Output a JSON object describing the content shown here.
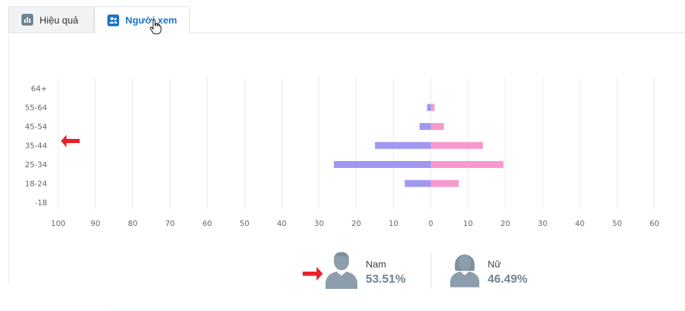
{
  "tabs": [
    {
      "label": "Hiệu quả",
      "icon": "bar-chart-icon",
      "active": false
    },
    {
      "label": "Người xem",
      "icon": "users-icon",
      "active": true
    }
  ],
  "chart_data": {
    "type": "bar",
    "orientation": "horizontal",
    "categories": [
      "64+",
      "55-64",
      "45-54",
      "35-44",
      "25-34",
      "18-24",
      "-18"
    ],
    "series": [
      {
        "values": [
          0,
          1,
          3,
          15,
          26,
          7,
          0
        ],
        "color": "#9f97f0",
        "side": "left"
      },
      {
        "values": [
          0,
          1,
          3.5,
          14,
          19.5,
          7.5,
          0
        ],
        "color": "#f899ce",
        "side": "right"
      }
    ],
    "x_ticks": [
      "100",
      "90",
      "80",
      "70",
      "60",
      "50",
      "40",
      "30",
      "20",
      "10",
      "0",
      "10",
      "20",
      "30",
      "40",
      "50",
      "60"
    ],
    "xlim_left": 100,
    "xlim_right": 60,
    "grid": true
  },
  "gender": {
    "male": {
      "label": "Nam",
      "value": "53.51%",
      "icon": "male-avatar-icon"
    },
    "female": {
      "label": "Nữ",
      "value": "46.49%",
      "icon": "female-avatar-icon"
    }
  },
  "annotations": [
    {
      "icon": "red-arrow-left-icon",
      "color": "#e8222a"
    },
    {
      "icon": "red-arrow-right-icon",
      "color": "#e8222a"
    }
  ]
}
